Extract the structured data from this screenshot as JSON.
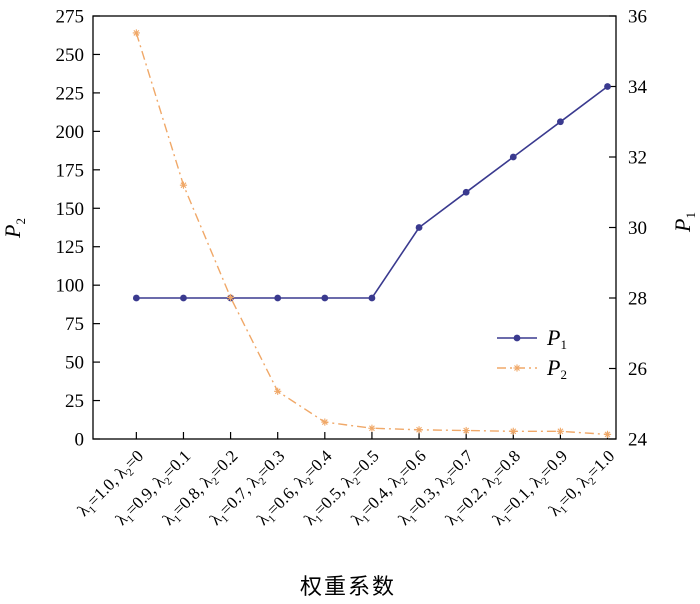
{
  "chart_data": {
    "type": "line",
    "categories": [
      {
        "l1": "1.0",
        "l2": "0"
      },
      {
        "l1": "0.9",
        "l2": "0.1"
      },
      {
        "l1": "0.8",
        "l2": "0.2"
      },
      {
        "l1": "0.7",
        "l2": "0.3"
      },
      {
        "l1": "0.6",
        "l2": "0.4"
      },
      {
        "l1": "0.5",
        "l2": "0.5"
      },
      {
        "l1": "0.4",
        "l2": "0.6"
      },
      {
        "l1": "0.3",
        "l2": "0.7"
      },
      {
        "l1": "0.2",
        "l2": "0.8"
      },
      {
        "l1": "0.1",
        "l2": "0.9"
      },
      {
        "l1": "0",
        "l2": "1.0"
      }
    ],
    "category_symbol": "λ",
    "xlabel": "权重系数",
    "y_left": {
      "label_base": "P",
      "label_sub": "2",
      "lim": [
        0,
        275
      ],
      "ticks": [
        0,
        25,
        50,
        75,
        100,
        125,
        150,
        175,
        200,
        225,
        250,
        275
      ]
    },
    "y_right": {
      "label_base": "P",
      "label_sub": "1",
      "lim": [
        24,
        36
      ],
      "ticks": [
        24,
        26,
        28,
        30,
        32,
        34,
        36
      ]
    },
    "series": [
      {
        "name_base": "P",
        "name_sub": "1",
        "axis": "right",
        "color": "#3a3a8f",
        "marker": "circle",
        "dash": "solid",
        "values": [
          28,
          28,
          28,
          28,
          28,
          28,
          30,
          31,
          32,
          33,
          34
        ]
      },
      {
        "name_base": "P",
        "name_sub": "2",
        "axis": "left",
        "color": "#f0a868",
        "marker": "star",
        "dash": "dashdot",
        "values": [
          264,
          165,
          92,
          31,
          11,
          7,
          6,
          5.5,
          5,
          5,
          3
        ]
      }
    ],
    "legend_position": "center-right",
    "grid": false
  }
}
